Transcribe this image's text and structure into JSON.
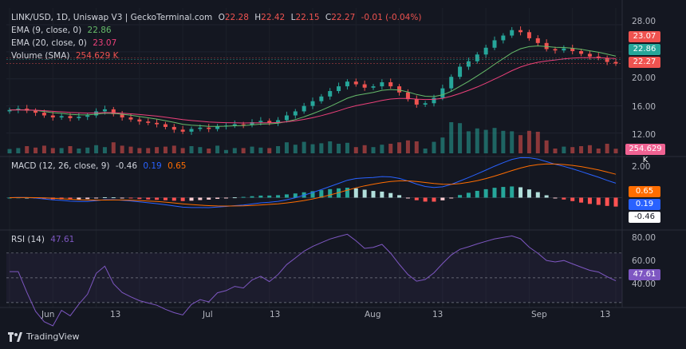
{
  "header": {
    "pair": "LINK/USD, 1D, Uniswap V3 | GeckoTerminal.com",
    "o_label": "O",
    "o_value": "22.28",
    "h_label": "H",
    "h_value": "22.42",
    "l_label": "L",
    "l_value": "22.15",
    "c_label": "C",
    "c_value": "22.27",
    "change": "-0.01 (-0.04%)"
  },
  "indicators": {
    "ema9_label": "EMA (9, close, 0)",
    "ema9_value": "22.86",
    "ema20_label": "EMA (20, close, 0)",
    "ema20_value": "23.07",
    "volume_label": "Volume (SMA)",
    "volume_value": "254.629 K",
    "macd_label": "MACD (12, 26, close, 9)",
    "macd_hist": "-0.46",
    "macd_line": "0.19",
    "macd_signal": "0.65",
    "rsi_label": "RSI (14)",
    "rsi_value": "47.61"
  },
  "badges": {
    "ema20": "23.07",
    "ema9": "22.86",
    "close": "22.27",
    "volume": "254.629 K",
    "macd_signal": "0.65",
    "macd_line": "0.19",
    "macd_hist": "-0.46",
    "rsi": "47.61"
  },
  "colors": {
    "up": "#26a69a",
    "down": "#ef5350",
    "ema9": "#66bb6a",
    "ema20": "#ec407a",
    "macd": "#2962ff",
    "signal": "#ff6d00",
    "rsi": "#7e57c2",
    "background": "#141721"
  },
  "brand": {
    "name": "TradingView",
    "icon": "tradingview-logo-icon"
  },
  "chart_data": {
    "type": "line",
    "price_axis": {
      "ticks": [
        "28.00",
        "24.00",
        "20.00",
        "16.00",
        "12.00"
      ],
      "ylim": [
        9,
        30
      ]
    },
    "macd_axis": {
      "ticks": [
        "2.00"
      ],
      "ylim": [
        -2,
        2.6
      ]
    },
    "rsi_axis": {
      "ticks": [
        "80.00",
        "60.00",
        "40.00"
      ],
      "ylim": [
        28,
        86
      ],
      "bands": [
        70,
        30
      ]
    },
    "x_ticks": [
      "Jun",
      "13",
      "Jul",
      "13",
      "Aug",
      "13",
      "Sep",
      "13"
    ],
    "close_path": [
      15.4,
      15.6,
      15.3,
      15.0,
      14.6,
      14.3,
      14.5,
      14.2,
      14.4,
      14.6,
      15.2,
      15.5,
      14.8,
      14.3,
      14.0,
      13.7,
      13.5,
      13.3,
      12.9,
      12.5,
      12.2,
      12.6,
      12.8,
      12.6,
      13.0,
      13.1,
      13.3,
      13.2,
      13.6,
      13.8,
      13.5,
      13.9,
      14.6,
      15.2,
      16.0,
      16.7,
      17.4,
      18.2,
      18.9,
      19.6,
      19.2,
      18.7,
      18.9,
      19.5,
      18.9,
      18.0,
      17.0,
      16.2,
      16.4,
      17.2,
      18.6,
      20.3,
      21.8,
      22.6,
      23.6,
      24.6,
      25.7,
      26.4,
      27.2,
      26.9,
      26.0,
      25.3,
      24.4,
      24.2,
      24.5,
      24.1,
      23.7,
      23.3,
      23.1,
      22.5,
      22.27
    ],
    "series": [
      {
        "name": "EMA (9, close, 0)",
        "last": 22.86
      },
      {
        "name": "EMA (20, close, 0)",
        "last": 23.07
      },
      {
        "name": "MACD",
        "last": 0.19
      },
      {
        "name": "Signal",
        "last": 0.65
      },
      {
        "name": "RSI (14)",
        "last": 47.61
      }
    ]
  }
}
